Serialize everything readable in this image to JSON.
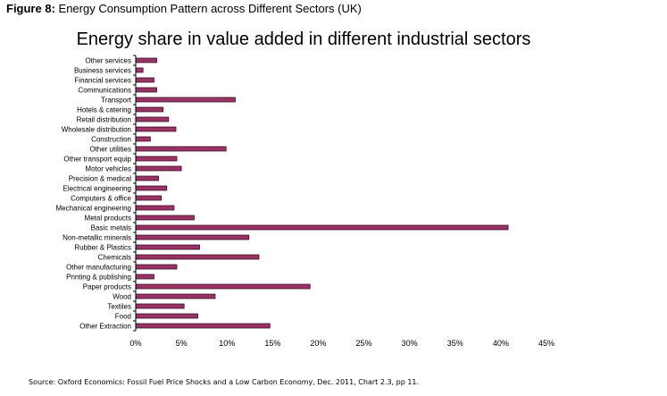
{
  "caption": {
    "label": "Figure 8:",
    "text": "Energy Consumption Pattern across Different Sectors (UK)"
  },
  "source": "Source: Oxford Economics: Fossil Fuel Price Shocks and a Low Carbon Economy, Dec. 2011, Chart 2.3, pp 11.",
  "colors": {
    "bar_fill": "#993366",
    "bar_stroke": "#3a0d24",
    "axis": "#000000"
  },
  "chart_data": {
    "type": "bar",
    "orientation": "horizontal",
    "title": "Energy share in value added in different industrial sectors",
    "xlabel": "",
    "ylabel": "",
    "xlim": [
      0,
      45
    ],
    "x_ticks": [
      "0%",
      "5%",
      "10%",
      "15%",
      "20%",
      "25%",
      "30%",
      "35%",
      "40%",
      "45%"
    ],
    "grid": false,
    "legend": "none",
    "categories": [
      "Other services",
      "Business services",
      "Financial services",
      "Communications",
      "Transport",
      "Hotels & catering",
      "Retail distribution",
      "Wholesale distribution",
      "Construction",
      "Other utilities",
      "Other transport equip",
      "Motor vehicles",
      "Precision & medical",
      "Electrical engineering",
      "Computers & office",
      "Mechanical engineering",
      "Metal products",
      "Basic metals",
      "Non-metallic minerals",
      "Rubber & Plastics",
      "Chemicals",
      "Other manufacturing",
      "Printing & publishing",
      "Paper products",
      "Wood",
      "Textiles",
      "Food",
      "Other Extraction"
    ],
    "values": [
      2.3,
      0.8,
      2.0,
      2.3,
      10.9,
      3.0,
      3.6,
      4.4,
      1.6,
      9.9,
      4.5,
      5.0,
      2.5,
      3.4,
      2.8,
      4.2,
      6.4,
      40.8,
      12.4,
      7.0,
      13.5,
      4.5,
      2.0,
      19.1,
      8.7,
      5.3,
      6.8,
      14.7
    ]
  }
}
